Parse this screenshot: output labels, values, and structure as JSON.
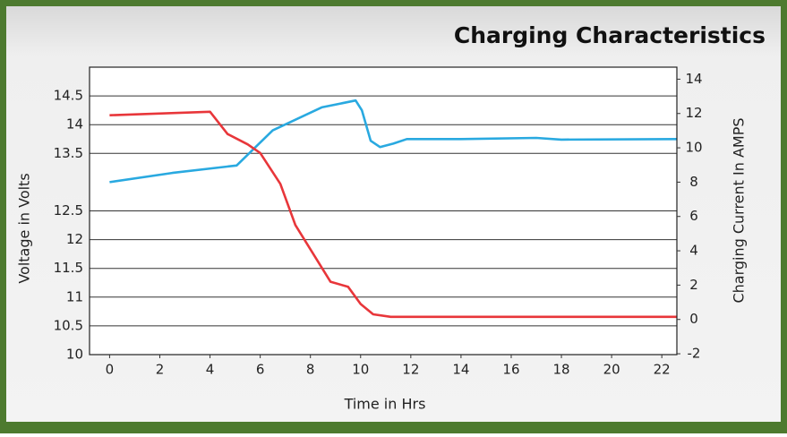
{
  "chart_data": {
    "type": "line",
    "title": "Charging Characteristics",
    "x_label": "Time in Hrs",
    "y_label": "Voltage in Volts",
    "y2_label": "Charging Current In AMPS",
    "xlim": [
      -0.8,
      22.6
    ],
    "xticks": [
      0,
      2,
      4,
      6,
      8,
      10,
      12,
      14,
      16,
      18,
      20,
      22
    ],
    "ylim": [
      10,
      15
    ],
    "yticks": [
      10,
      10.5,
      11,
      11.5,
      12,
      12.5,
      13.5,
      14,
      14.5
    ],
    "y2lim": [
      -2.05,
      14.7
    ],
    "y2ticks": [
      -2,
      0,
      2,
      4,
      6,
      8,
      10,
      12,
      14
    ],
    "grid": true,
    "series": [
      {
        "name": "Voltage",
        "color": "#29a9e0",
        "axis": "y",
        "x": [
          0,
          2.5,
          5.06,
          6.5,
          8.45,
          9.8,
          10.05,
          10.4,
          10.77,
          11.3,
          11.84,
          14,
          17,
          18,
          22.6
        ],
        "values": [
          13.0,
          13.16,
          13.29,
          13.9,
          14.3,
          14.42,
          14.25,
          13.72,
          13.61,
          13.67,
          13.75,
          13.75,
          13.77,
          13.74,
          13.75
        ]
      },
      {
        "name": "Current",
        "color": "#e8363a",
        "axis": "y2",
        "x": [
          0,
          4,
          4.7,
          5.5,
          6,
          6.8,
          7.4,
          8.8,
          9.5,
          10,
          10.5,
          11.2,
          22.6
        ],
        "values": [
          11.9,
          12.1,
          10.8,
          10.2,
          9.7,
          7.9,
          5.5,
          2.2,
          1.9,
          0.9,
          0.3,
          0.15,
          0.15
        ]
      }
    ]
  }
}
